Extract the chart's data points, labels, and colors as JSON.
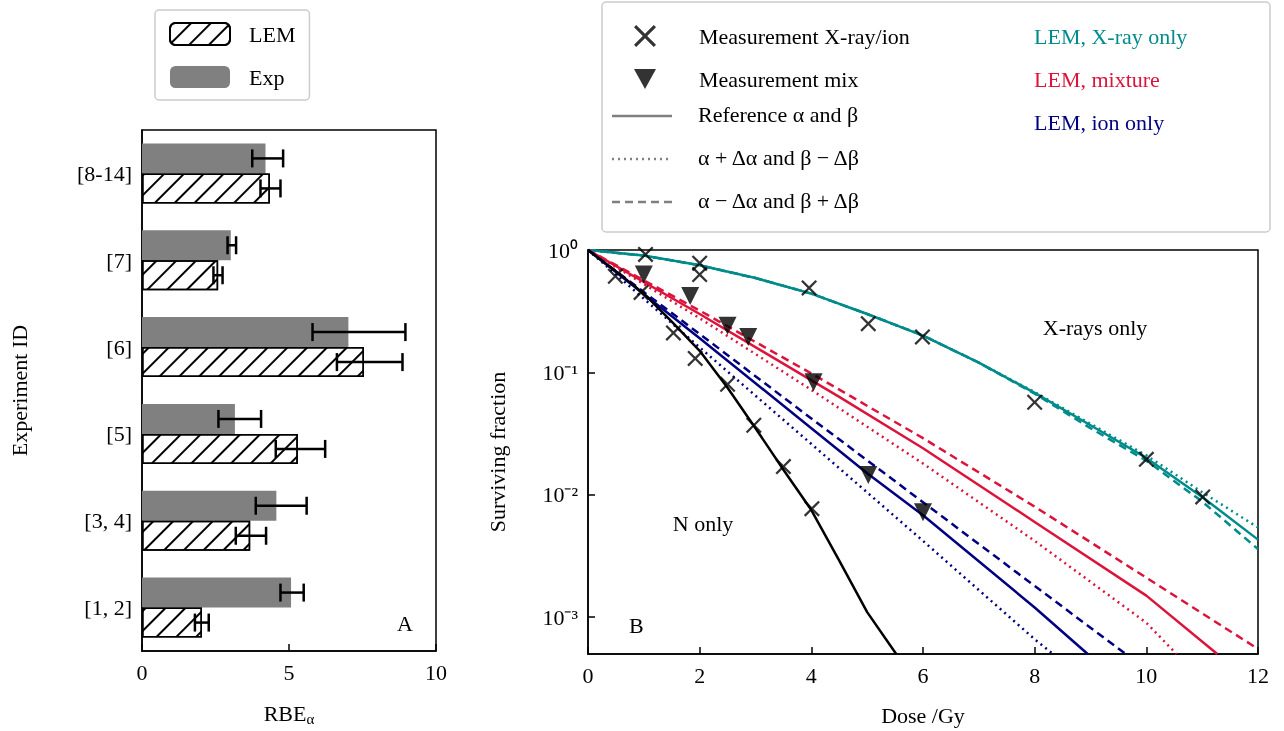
{
  "chart_data": [
    {
      "type": "bar",
      "orientation": "horizontal",
      "title": "A",
      "xlabel": "RBE$_{α}$",
      "ylabel": "Experiment ID",
      "categories": [
        "[8-14]",
        "[7]",
        "[6]",
        "[5]",
        "[3, 4]",
        "[1, 2]"
      ],
      "series": [
        {
          "name": "LEM",
          "color": "#ffffff",
          "values": [
            4.35,
            2.59,
            7.55,
            5.3,
            3.68,
            2.04
          ],
          "errors": [
            [
              4.03,
              4.71
            ],
            [
              2.43,
              2.74
            ],
            [
              6.63,
              8.86
            ],
            [
              4.55,
              6.23
            ],
            [
              3.19,
              4.22
            ],
            [
              1.8,
              2.27
            ]
          ]
        },
        {
          "name": "Exp",
          "color": "#808080",
          "values": [
            4.2,
            3.02,
            7.02,
            3.16,
            4.57,
            5.07
          ],
          "errors": [
            [
              3.75,
              4.8
            ],
            [
              2.91,
              3.2
            ],
            [
              5.8,
              8.96
            ],
            [
              2.6,
              4.05
            ],
            [
              3.87,
              5.6
            ],
            [
              4.71,
              5.5
            ]
          ]
        }
      ],
      "xlim": [
        0,
        10
      ],
      "xticks": [
        0,
        5,
        10
      ],
      "grid": false,
      "legend": "top"
    },
    {
      "type": "line",
      "title": "B",
      "xlabel": "Dose /Gy",
      "ylabel": "Surviving fraction",
      "log": "y",
      "xlim": [
        0,
        12
      ],
      "xticks": [
        0,
        2,
        4,
        6,
        8,
        10,
        12
      ],
      "ylim": [
        0.0005,
        1
      ],
      "yticks": [
        {
          "value": 1,
          "label": "10⁰"
        },
        {
          "value": 0.1,
          "label": "10⁻¹"
        },
        {
          "value": 0.01,
          "label": "10⁻²"
        },
        {
          "value": 0.001,
          "label": "10⁻³"
        }
      ],
      "grid": false,
      "legend": "top",
      "annotations": [
        "Reference α and β",
        "α + Δα and β − Δβ",
        "α − Δα and β + Δβ",
        "X-rays only",
        "N only"
      ],
      "series": [
        {
          "type": "line",
          "name": "LEM, X-ray only",
          "color": "#008b8b",
          "line_style": "solid",
          "marker": "none",
          "x": [
            0,
            1,
            2,
            3,
            4,
            5,
            6,
            7,
            8,
            9,
            10,
            11,
            12
          ],
          "values": [
            1,
            0.9,
            0.75,
            0.59,
            0.44,
            0.3,
            0.2,
            0.12,
            0.068,
            0.037,
            0.02,
            0.0096,
            0.0043
          ]
        },
        {
          "type": "line",
          "color": "#008b8b",
          "line_style": "dotted",
          "marker": "none",
          "x": [
            0,
            1,
            2,
            3,
            4,
            5,
            6,
            7,
            8,
            9,
            10,
            11,
            12
          ],
          "values": [
            1,
            0.9,
            0.75,
            0.59,
            0.44,
            0.3,
            0.2,
            0.12,
            0.069,
            0.038,
            0.021,
            0.0105,
            0.0054
          ]
        },
        {
          "type": "line",
          "color": "#008b8b",
          "line_style": "dashed",
          "marker": "none",
          "x": [
            0,
            1,
            2,
            3,
            4,
            5,
            6,
            7,
            8,
            9,
            10,
            11,
            12
          ],
          "values": [
            1,
            0.9,
            0.75,
            0.59,
            0.44,
            0.3,
            0.2,
            0.12,
            0.067,
            0.035,
            0.019,
            0.0088,
            0.0036
          ]
        },
        {
          "type": "line",
          "name": "LEM, mixture",
          "color": "#dc143c",
          "line_style": "solid",
          "marker": "none",
          "x": [
            0,
            2,
            4.5,
            6,
            8,
            10,
            11.27
          ],
          "values": [
            1,
            0.3,
            0.063,
            0.024,
            0.006,
            0.0015,
            0.0005
          ]
        },
        {
          "type": "line",
          "color": "#dc143c",
          "line_style": "dotted",
          "marker": "none",
          "x": [
            0,
            2,
            4,
            6,
            8,
            10,
            10.54
          ],
          "values": [
            1,
            0.277,
            0.072,
            0.018,
            0.0042,
            0.0009,
            0.0005
          ]
        },
        {
          "type": "line",
          "color": "#dc143c",
          "line_style": "dashed",
          "marker": "none",
          "x": [
            0,
            2,
            4,
            6,
            8,
            10,
            12
          ],
          "values": [
            1,
            0.32,
            0.098,
            0.029,
            0.008,
            0.0021,
            0.00055
          ]
        },
        {
          "type": "line",
          "name": "LEM, ion only",
          "color": "#000080",
          "line_style": "solid",
          "marker": "none",
          "x": [
            0,
            2,
            4,
            5,
            6,
            8,
            8.95
          ],
          "values": [
            1,
            0.19,
            0.035,
            0.015,
            0.0068,
            0.0012,
            0.0005
          ]
        },
        {
          "type": "line",
          "color": "#000080",
          "line_style": "dotted",
          "marker": "none",
          "x": [
            0,
            2,
            4,
            6,
            8,
            8.33
          ],
          "values": [
            1,
            0.16,
            0.026,
            0.0042,
            0.00066,
            0.0005
          ]
        },
        {
          "type": "line",
          "color": "#000080",
          "line_style": "dashed",
          "marker": "none",
          "x": [
            0,
            2,
            4,
            6,
            8,
            9.63
          ],
          "values": [
            1,
            0.206,
            0.042,
            0.0087,
            0.0018,
            0.0005
          ]
        },
        {
          "type": "line",
          "color": "#000000",
          "line_style": "solid",
          "marker": "none",
          "x": [
            0,
            0.5,
            1,
            1.5,
            2,
            2.5,
            3,
            3.5,
            4,
            4.5,
            5,
            5.52
          ],
          "values": [
            1,
            0.67,
            0.44,
            0.26,
            0.15,
            0.075,
            0.035,
            0.016,
            0.0075,
            0.0029,
            0.0011,
            0.0005
          ]
        },
        {
          "type": "scatter",
          "name": "Measurement X-ray/ion",
          "color": "#000000",
          "marker": "cross",
          "x": [
            1.03,
            2,
            2,
            3.96,
            5.02,
            5.99,
            8,
            10,
            11.01,
            0.49,
            0.95,
            1.53,
            1.92,
            2.5,
            2.97,
            3.5,
            4.01
          ],
          "values": [
            0.92,
            0.78,
            0.63,
            0.49,
            0.25,
            0.195,
            0.057,
            0.0195,
            0.0096,
            0.61,
            0.45,
            0.21,
            0.13,
            0.08,
            0.037,
            0.017,
            0.0077
          ]
        },
        {
          "type": "scatter",
          "name": "Measurement mix",
          "color": "#000000",
          "marker": "triangle",
          "x": [
            1,
            1.83,
            2.5,
            2.87,
            4.04,
            5.02,
            6
          ],
          "values": [
            0.63,
            0.42,
            0.24,
            0.195,
            0.083,
            0.0145,
            0.0072
          ]
        }
      ]
    }
  ]
}
